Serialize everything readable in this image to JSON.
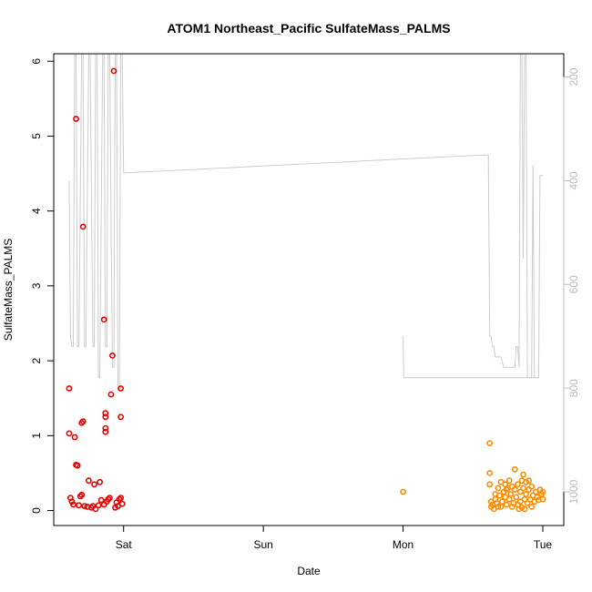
{
  "chart_data": {
    "type": "scatter",
    "title": "ATOM1 Northeast_Pacific SulfateMass_PALMS",
    "xlabel": "Date",
    "ylabel": "SulfateMass_PALMS",
    "x_unit": "days",
    "x_ticks": [
      {
        "value": 1,
        "label": "Sat"
      },
      {
        "value": 2,
        "label": "Sun"
      },
      {
        "value": 3,
        "label": "Mon"
      },
      {
        "value": 4,
        "label": "Tue"
      }
    ],
    "xlim": [
      0.5,
      4.15
    ],
    "ylim": [
      -0.2,
      6.1
    ],
    "y_ticks": [
      0,
      1,
      2,
      3,
      4,
      5,
      6
    ],
    "right_axis": {
      "ticks": [
        200,
        400,
        600,
        800,
        1000
      ],
      "ylim": [
        1065,
        155
      ],
      "color": "#bdbdbd"
    },
    "grid": false,
    "series": [
      {
        "color": "#e60000",
        "marker": "open-circle",
        "points": [
          [
            0.61,
            1.63
          ],
          [
            0.61,
            1.03
          ],
          [
            0.62,
            0.17
          ],
          [
            0.63,
            0.12
          ],
          [
            0.64,
            0.08
          ],
          [
            0.65,
            0.98
          ],
          [
            0.66,
            0.61
          ],
          [
            0.67,
            0.6
          ],
          [
            0.66,
            5.23
          ],
          [
            0.68,
            0.07
          ],
          [
            0.69,
            0.19
          ],
          [
            0.7,
            0.21
          ],
          [
            0.7,
            1.17
          ],
          [
            0.71,
            1.19
          ],
          [
            0.71,
            3.79
          ],
          [
            0.72,
            0.06
          ],
          [
            0.74,
            0.05
          ],
          [
            0.75,
            0.4
          ],
          [
            0.77,
            0.04
          ],
          [
            0.79,
            0.35
          ],
          [
            0.8,
            0.02
          ],
          [
            0.82,
            0.07
          ],
          [
            0.83,
            0.38
          ],
          [
            0.84,
            0.14
          ],
          [
            0.86,
            0.08
          ],
          [
            0.87,
            1.05
          ],
          [
            0.87,
            1.1
          ],
          [
            0.87,
            1.25
          ],
          [
            0.87,
            1.3
          ],
          [
            0.86,
            2.55
          ],
          [
            0.88,
            0.12
          ],
          [
            0.9,
            0.17
          ],
          [
            0.91,
            1.55
          ],
          [
            0.92,
            2.07
          ],
          [
            0.93,
            5.87
          ],
          [
            0.94,
            0.04
          ],
          [
            0.95,
            0.11
          ],
          [
            0.96,
            0.06
          ],
          [
            0.97,
            0.15
          ],
          [
            0.98,
            0.17
          ],
          [
            0.98,
            1.63
          ],
          [
            0.98,
            1.25
          ],
          [
            0.99,
            0.09
          ],
          [
            0.89,
            0.15
          ],
          [
            0.78,
            0.06
          ]
        ]
      },
      {
        "color": "#ff8c00",
        "marker": "open-circle",
        "points": [
          [
            3.0,
            0.25
          ],
          [
            3.62,
            0.9
          ],
          [
            3.62,
            0.5
          ],
          [
            3.62,
            0.35
          ],
          [
            3.63,
            0.05
          ],
          [
            3.63,
            0.12
          ],
          [
            3.64,
            0.08
          ],
          [
            3.65,
            0.02
          ],
          [
            3.66,
            0.15
          ],
          [
            3.66,
            0.22
          ],
          [
            3.67,
            0.1
          ],
          [
            3.68,
            0.3
          ],
          [
            3.69,
            0.2
          ],
          [
            3.7,
            0.05
          ],
          [
            3.7,
            0.38
          ],
          [
            3.71,
            0.12
          ],
          [
            3.72,
            0.25
          ],
          [
            3.73,
            0.18
          ],
          [
            3.73,
            0.35
          ],
          [
            3.74,
            0.08
          ],
          [
            3.75,
            0.3
          ],
          [
            3.76,
            0.4
          ],
          [
            3.76,
            0.15
          ],
          [
            3.77,
            0.22
          ],
          [
            3.78,
            0.05
          ],
          [
            3.79,
            0.1
          ],
          [
            3.8,
            0.28
          ],
          [
            3.8,
            0.55
          ],
          [
            3.81,
            0.18
          ],
          [
            3.82,
            0.35
          ],
          [
            3.82,
            0.08
          ],
          [
            3.83,
            0.02
          ],
          [
            3.84,
            0.12
          ],
          [
            3.84,
            0.25
          ],
          [
            3.85,
            0.04
          ],
          [
            3.86,
            0.3
          ],
          [
            3.86,
            0.48
          ],
          [
            3.87,
            0.15
          ],
          [
            3.88,
            0.38
          ],
          [
            3.88,
            0.22
          ],
          [
            3.89,
            0.1
          ],
          [
            3.9,
            0.28
          ],
          [
            3.9,
            0.4
          ],
          [
            3.91,
            0.15
          ],
          [
            3.92,
            0.32
          ],
          [
            3.92,
            0.05
          ],
          [
            3.93,
            0.2
          ],
          [
            3.94,
            0.12
          ],
          [
            3.95,
            0.25
          ],
          [
            3.96,
            0.18
          ],
          [
            3.97,
            0.14
          ],
          [
            3.98,
            0.28
          ],
          [
            3.99,
            0.22
          ],
          [
            4.0,
            0.15
          ],
          [
            4.0,
            0.25
          ],
          [
            3.68,
            0.05
          ],
          [
            3.74,
            0.28
          ],
          [
            3.78,
            0.32
          ],
          [
            3.85,
            0.4
          ],
          [
            3.87,
            0.02
          ]
        ]
      },
      {
        "name": "",
        "axis": "right",
        "color": "#cccccc",
        "type": "line",
        "points": [
          [
            0.61,
            400
          ],
          [
            0.62,
            700
          ],
          [
            0.63,
            720
          ],
          [
            0.64,
            720
          ],
          [
            0.65,
            155
          ],
          [
            0.66,
            155
          ],
          [
            0.67,
            720
          ],
          [
            0.68,
            720
          ],
          [
            0.7,
            155
          ],
          [
            0.71,
            155
          ],
          [
            0.72,
            720
          ],
          [
            0.73,
            720
          ],
          [
            0.75,
            155
          ],
          [
            0.76,
            155
          ],
          [
            0.78,
            720
          ],
          [
            0.79,
            720
          ],
          [
            0.8,
            155
          ],
          [
            0.81,
            155
          ],
          [
            0.82,
            780
          ],
          [
            0.83,
            780
          ],
          [
            0.85,
            155
          ],
          [
            0.86,
            155
          ],
          [
            0.87,
            720
          ],
          [
            0.88,
            720
          ],
          [
            0.89,
            155
          ],
          [
            0.9,
            155
          ],
          [
            0.92,
            760
          ],
          [
            0.93,
            760
          ],
          [
            0.94,
            155
          ],
          [
            0.95,
            155
          ],
          [
            0.96,
            800
          ],
          [
            0.97,
            800
          ],
          [
            0.98,
            155
          ],
          [
            0.99,
            155
          ],
          [
            1.0,
            385
          ],
          [
            3.6,
            350
          ],
          [
            3.61,
            350
          ],
          [
            3.62,
            700
          ],
          [
            3.63,
            700
          ],
          [
            3.64,
            720
          ],
          [
            3.65,
            720
          ],
          [
            3.66,
            740
          ],
          [
            3.7,
            740
          ],
          [
            3.72,
            760
          ],
          [
            3.8,
            760
          ],
          [
            3.81,
            720
          ],
          [
            3.82,
            720
          ],
          [
            3.83,
            760
          ],
          [
            3.84,
            155
          ],
          [
            3.85,
            155
          ],
          [
            3.86,
            550
          ],
          [
            3.87,
            155
          ],
          [
            3.88,
            155
          ],
          [
            3.89,
            780
          ],
          [
            3.9,
            780
          ],
          [
            3.91,
            780
          ],
          [
            3.92,
            780
          ],
          [
            3.93,
            370
          ],
          [
            3.94,
            780
          ],
          [
            3.95,
            780
          ],
          [
            3.96,
            780
          ],
          [
            3.97,
            780
          ],
          [
            3.98,
            390
          ],
          [
            4.0,
            390
          ]
        ]
      },
      {
        "name": "",
        "axis": "right",
        "color": "#cccccc",
        "type": "line",
        "points": [
          [
            3.0,
            700
          ],
          [
            3.005,
            780
          ],
          [
            3.97,
            780
          ]
        ]
      }
    ]
  }
}
